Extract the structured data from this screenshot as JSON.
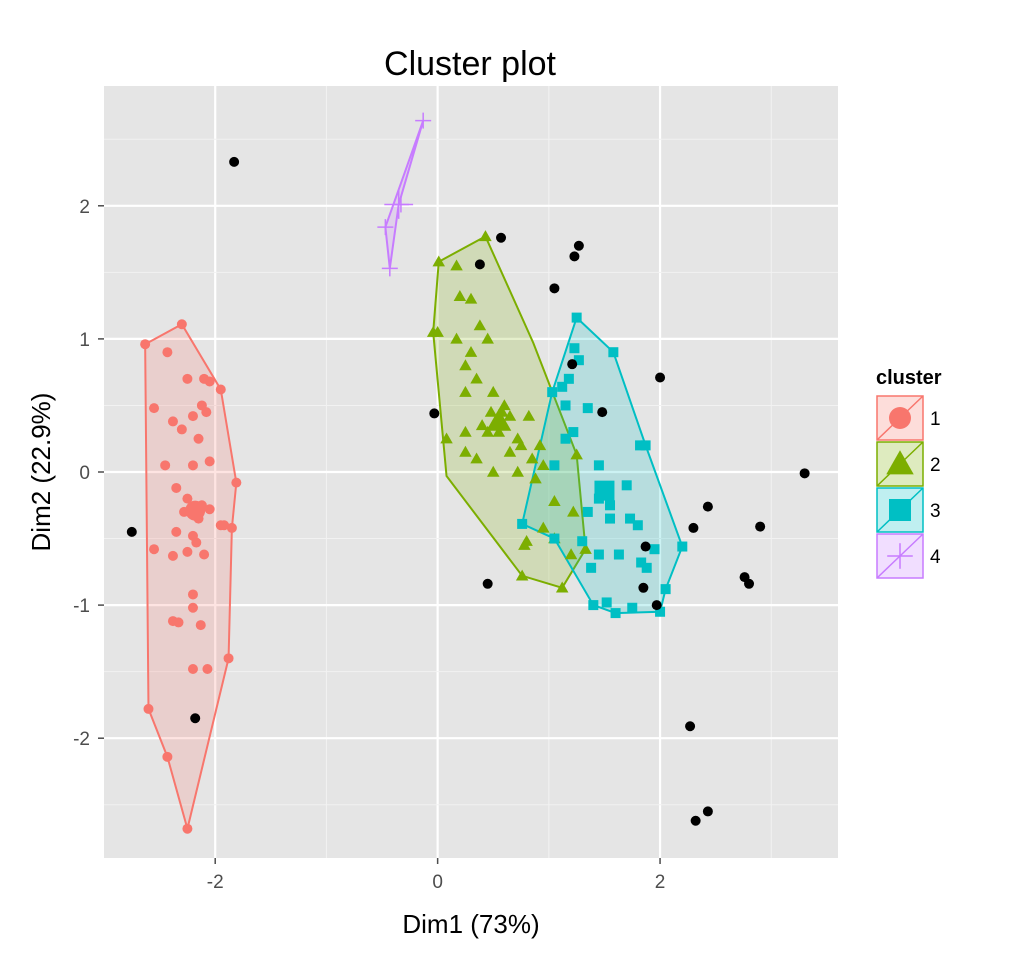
{
  "chart_data": {
    "type": "scatter",
    "title": "Cluster plot",
    "xlabel": "Dim1 (73%)",
    "ylabel": "Dim2 (22.9%)",
    "xlim": [
      -3.0,
      3.6
    ],
    "ylim": [
      -2.9,
      2.9
    ],
    "x_ticks": [
      -2,
      0,
      2
    ],
    "y_ticks": [
      -2,
      -1,
      0,
      1,
      2
    ],
    "x_tick_labels": [
      "-2",
      "0",
      "2"
    ],
    "y_tick_labels": [
      "-2",
      "-1",
      "0",
      "1",
      "2"
    ],
    "grid": true,
    "legend": {
      "title": "cluster",
      "position": "right"
    },
    "series": [
      {
        "name": "1",
        "color": "#F8766D",
        "shape": "circle",
        "hull": [
          [
            -2.63,
            0.96
          ],
          [
            -2.3,
            1.11
          ],
          [
            -1.95,
            0.62
          ],
          [
            -1.81,
            -0.08
          ],
          [
            -1.85,
            -0.42
          ],
          [
            -1.88,
            -1.4
          ],
          [
            -2.25,
            -2.68
          ],
          [
            -2.43,
            -2.14
          ],
          [
            -2.6,
            -1.78
          ]
        ],
        "centroid": [
          -2.18,
          -0.29
        ],
        "points": [
          [
            -2.63,
            0.96
          ],
          [
            -2.3,
            1.11
          ],
          [
            -2.43,
            0.9
          ],
          [
            -1.95,
            0.62
          ],
          [
            -2.1,
            0.7
          ],
          [
            -2.05,
            0.68
          ],
          [
            -2.25,
            0.7
          ],
          [
            -2.55,
            0.48
          ],
          [
            -2.38,
            0.38
          ],
          [
            -2.2,
            0.42
          ],
          [
            -2.12,
            0.5
          ],
          [
            -2.08,
            0.45
          ],
          [
            -2.15,
            0.25
          ],
          [
            -2.3,
            0.32
          ],
          [
            -2.45,
            0.05
          ],
          [
            -2.2,
            0.05
          ],
          [
            -2.05,
            0.08
          ],
          [
            -1.81,
            -0.08
          ],
          [
            -2.35,
            -0.12
          ],
          [
            -2.25,
            -0.2
          ],
          [
            -2.12,
            -0.25
          ],
          [
            -2.28,
            -0.3
          ],
          [
            -2.15,
            -0.35
          ],
          [
            -2.05,
            -0.28
          ],
          [
            -1.95,
            -0.4
          ],
          [
            -1.85,
            -0.42
          ],
          [
            -2.35,
            -0.45
          ],
          [
            -2.2,
            -0.48
          ],
          [
            -2.17,
            -0.53
          ],
          [
            -2.55,
            -0.58
          ],
          [
            -2.38,
            -0.63
          ],
          [
            -2.25,
            -0.6
          ],
          [
            -2.1,
            -0.62
          ],
          [
            -2.2,
            -0.92
          ],
          [
            -2.2,
            -1.02
          ],
          [
            -2.38,
            -1.12
          ],
          [
            -2.33,
            -1.13
          ],
          [
            -2.13,
            -1.15
          ],
          [
            -2.2,
            -1.48
          ],
          [
            -2.07,
            -1.48
          ],
          [
            -1.88,
            -1.4
          ],
          [
            -2.6,
            -1.78
          ],
          [
            -2.43,
            -2.14
          ],
          [
            -2.25,
            -2.68
          ],
          [
            -1.92,
            -0.4
          ]
        ]
      },
      {
        "name": "2",
        "color": "#7CAE00",
        "shape": "triangle",
        "hull": [
          [
            0.01,
            1.58
          ],
          [
            0.43,
            1.77
          ],
          [
            0.86,
            0.97
          ],
          [
            1.25,
            0.13
          ],
          [
            1.33,
            -0.58
          ],
          [
            1.12,
            -0.87
          ],
          [
            0.76,
            -0.78
          ],
          [
            0.08,
            -0.03
          ],
          [
            -0.04,
            1.05
          ]
        ],
        "centroid": [
          0.55,
          0.38
        ],
        "points": [
          [
            0.01,
            1.58
          ],
          [
            0.17,
            1.55
          ],
          [
            0.43,
            1.77
          ],
          [
            0.2,
            1.32
          ],
          [
            0.3,
            1.3
          ],
          [
            0.38,
            1.1
          ],
          [
            0.45,
            1.0
          ],
          [
            -0.04,
            1.05
          ],
          [
            0.0,
            1.05
          ],
          [
            0.17,
            1.0
          ],
          [
            0.3,
            0.9
          ],
          [
            0.25,
            0.8
          ],
          [
            0.35,
            0.7
          ],
          [
            0.5,
            0.6
          ],
          [
            0.25,
            0.6
          ],
          [
            0.4,
            0.35
          ],
          [
            0.48,
            0.45
          ],
          [
            0.58,
            0.45
          ],
          [
            0.65,
            0.42
          ],
          [
            0.82,
            0.42
          ],
          [
            0.45,
            0.3
          ],
          [
            0.55,
            0.3
          ],
          [
            0.72,
            0.25
          ],
          [
            0.25,
            0.3
          ],
          [
            0.08,
            0.25
          ],
          [
            0.25,
            0.15
          ],
          [
            0.35,
            0.1
          ],
          [
            0.65,
            0.15
          ],
          [
            0.75,
            0.2
          ],
          [
            0.85,
            0.1
          ],
          [
            0.92,
            0.2
          ],
          [
            1.25,
            0.13
          ],
          [
            0.5,
            0.0
          ],
          [
            0.72,
            0.0
          ],
          [
            0.95,
            0.05
          ],
          [
            0.88,
            -0.05
          ],
          [
            1.05,
            -0.22
          ],
          [
            1.22,
            -0.3
          ],
          [
            0.95,
            -0.42
          ],
          [
            0.8,
            -0.52
          ],
          [
            1.05,
            -0.5
          ],
          [
            1.2,
            -0.62
          ],
          [
            1.33,
            -0.58
          ],
          [
            0.78,
            -0.55
          ],
          [
            0.76,
            -0.78
          ],
          [
            1.12,
            -0.87
          ],
          [
            0.6,
            0.5
          ]
        ]
      },
      {
        "name": "3",
        "color": "#00BFC4",
        "shape": "square",
        "hull": [
          [
            1.25,
            1.16
          ],
          [
            1.58,
            0.9
          ],
          [
            1.87,
            0.2
          ],
          [
            2.2,
            -0.56
          ],
          [
            2.05,
            -0.88
          ],
          [
            2.0,
            -1.05
          ],
          [
            1.6,
            -1.06
          ],
          [
            1.4,
            -1.0
          ],
          [
            1.05,
            -0.5
          ],
          [
            0.76,
            -0.39
          ],
          [
            1.03,
            0.6
          ]
        ],
        "centroid": [
          1.5,
          -0.14
        ],
        "points": [
          [
            1.25,
            1.16
          ],
          [
            1.58,
            0.9
          ],
          [
            1.23,
            0.93
          ],
          [
            1.27,
            0.84
          ],
          [
            1.18,
            0.7
          ],
          [
            1.12,
            0.64
          ],
          [
            1.03,
            0.6
          ],
          [
            1.15,
            0.5
          ],
          [
            1.35,
            0.48
          ],
          [
            1.22,
            0.3
          ],
          [
            1.15,
            0.25
          ],
          [
            1.87,
            0.2
          ],
          [
            1.82,
            0.2
          ],
          [
            1.45,
            0.05
          ],
          [
            1.05,
            0.05
          ],
          [
            1.7,
            -0.1
          ],
          [
            1.5,
            -0.12
          ],
          [
            1.45,
            -0.2
          ],
          [
            1.55,
            -0.25
          ],
          [
            1.35,
            -0.3
          ],
          [
            1.55,
            -0.35
          ],
          [
            1.73,
            -0.35
          ],
          [
            1.8,
            -0.4
          ],
          [
            0.76,
            -0.39
          ],
          [
            1.05,
            -0.5
          ],
          [
            1.3,
            -0.52
          ],
          [
            1.45,
            -0.62
          ],
          [
            1.63,
            -0.62
          ],
          [
            1.83,
            -0.68
          ],
          [
            1.95,
            -0.58
          ],
          [
            2.2,
            -0.56
          ],
          [
            1.88,
            -0.72
          ],
          [
            1.38,
            -0.72
          ],
          [
            2.05,
            -0.88
          ],
          [
            1.52,
            -0.98
          ],
          [
            1.75,
            -1.02
          ],
          [
            1.4,
            -1.0
          ],
          [
            1.6,
            -1.06
          ],
          [
            2.0,
            -1.05
          ]
        ]
      },
      {
        "name": "4",
        "color": "#C77CFF",
        "shape": "cross",
        "hull": [
          [
            -0.13,
            2.64
          ],
          [
            -0.35,
            2.01
          ],
          [
            -0.43,
            1.53
          ],
          [
            -0.47,
            1.84
          ]
        ],
        "centroid": [
          -0.35,
          2.01
        ],
        "points": [
          [
            -0.13,
            2.64
          ],
          [
            -0.33,
            2.01
          ],
          [
            -0.47,
            1.84
          ],
          [
            -0.43,
            1.53
          ]
        ]
      },
      {
        "name": "",
        "color": "#000000",
        "shape": "circle",
        "outliers": true,
        "points": [
          [
            -1.83,
            2.33
          ],
          [
            -2.75,
            -0.45
          ],
          [
            -2.18,
            -1.85
          ],
          [
            0.57,
            1.76
          ],
          [
            0.38,
            1.56
          ],
          [
            1.27,
            1.7
          ],
          [
            1.23,
            1.62
          ],
          [
            1.05,
            1.38
          ],
          [
            1.21,
            0.81
          ],
          [
            -0.03,
            0.44
          ],
          [
            1.48,
            0.45
          ],
          [
            2.0,
            0.71
          ],
          [
            3.3,
            -0.01
          ],
          [
            2.43,
            -0.26
          ],
          [
            2.3,
            -0.42
          ],
          [
            2.9,
            -0.41
          ],
          [
            1.87,
            -0.56
          ],
          [
            2.76,
            -0.79
          ],
          [
            2.8,
            -0.84
          ],
          [
            1.85,
            -0.87
          ],
          [
            1.97,
            -1.0
          ],
          [
            0.45,
            -0.84
          ],
          [
            2.27,
            -1.91
          ],
          [
            2.32,
            -2.62
          ],
          [
            2.43,
            -2.55
          ]
        ]
      }
    ]
  }
}
